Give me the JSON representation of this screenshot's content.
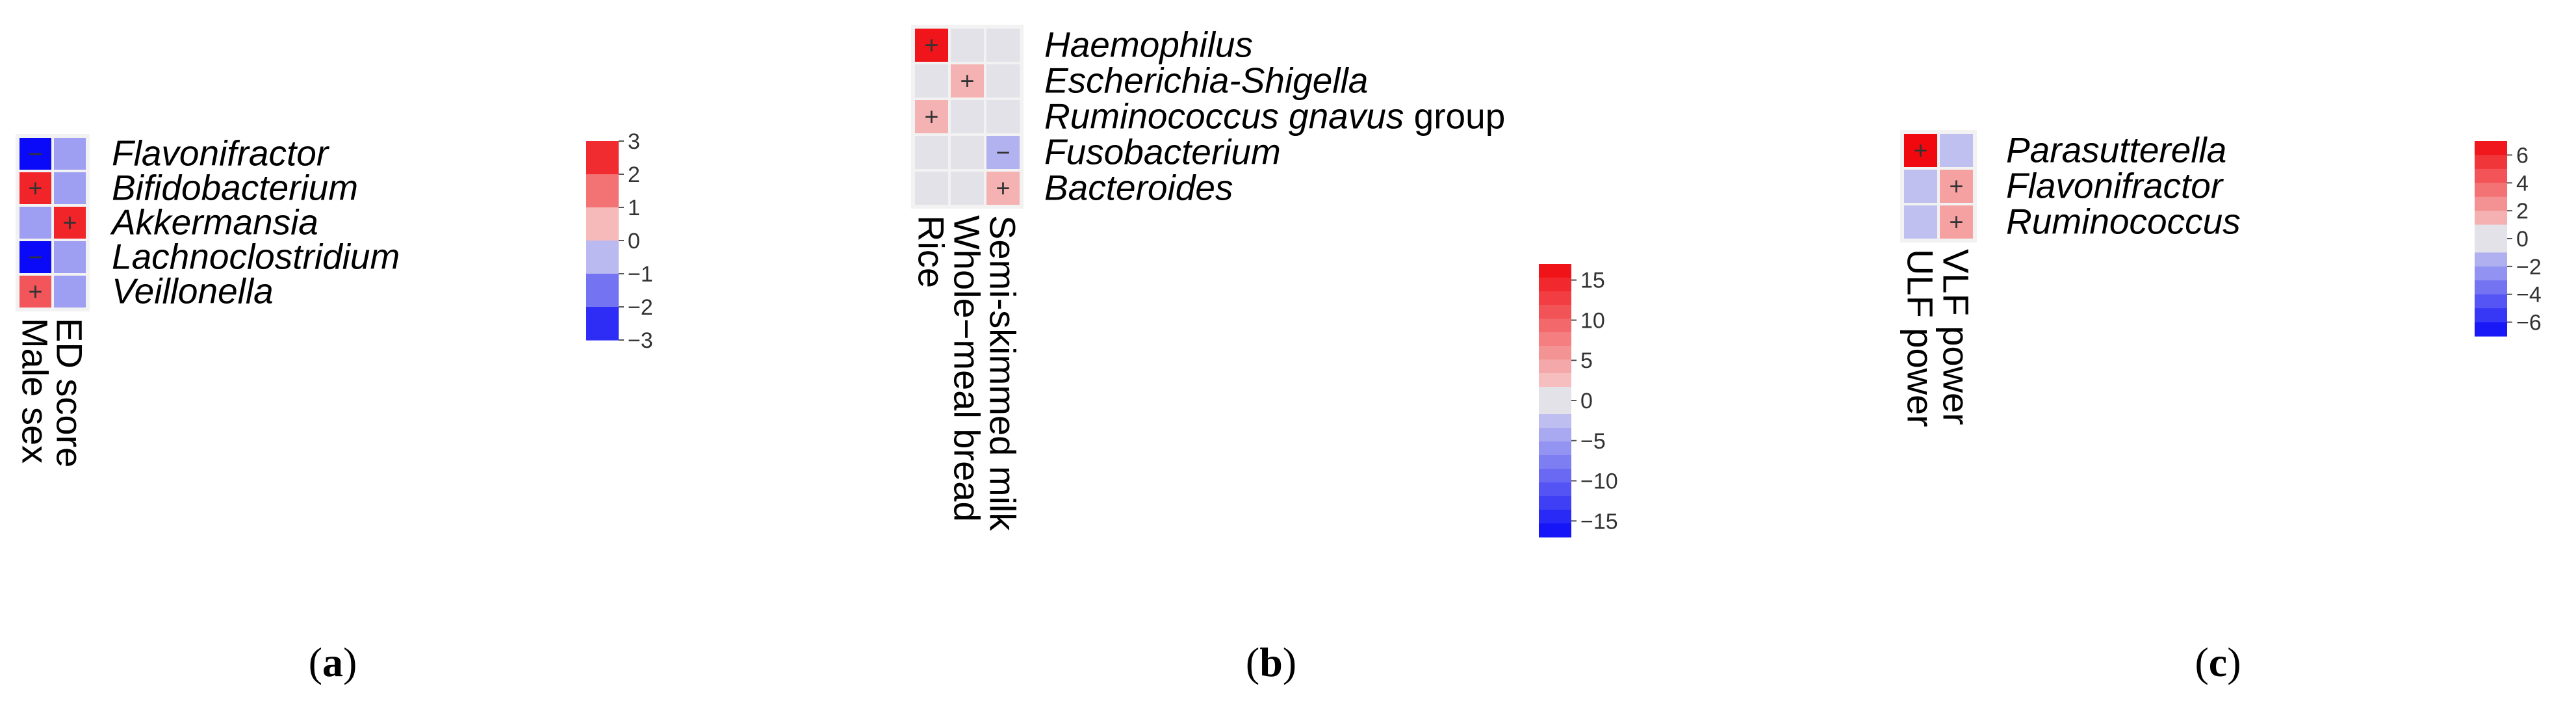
{
  "figure_captions": [
    "(a)",
    "(b)",
    "(c)"
  ],
  "chart_data": [
    {
      "type": "heatmap",
      "panel": "a",
      "rows": [
        "Flavonifractor",
        "Bifidobacterium",
        "Akkermansia",
        "Lachnoclostridium",
        "Veillonella"
      ],
      "columns": [
        "Male sex",
        "ED score"
      ],
      "values": [
        [
          -3,
          -0.9
        ],
        [
          2.6,
          -0.9
        ],
        [
          -0.9,
          2.6
        ],
        [
          -3,
          -0.9
        ],
        [
          1.9,
          -0.9
        ]
      ],
      "signs": [
        [
          "−",
          ""
        ],
        [
          "+",
          ""
        ],
        [
          "",
          "+"
        ],
        [
          "−",
          ""
        ],
        [
          "+",
          ""
        ]
      ],
      "colorbar": {
        "range": [
          -3,
          3
        ],
        "levels": 6,
        "ticks": [
          "3",
          "2",
          "1",
          "0",
          "−1",
          "−2",
          "−3"
        ]
      },
      "caption": "(a)"
    },
    {
      "type": "heatmap",
      "panel": "b",
      "rows": [
        "Haemophilus",
        "Escherichia-Shigella",
        "Ruminococcus gnavus group",
        "Fusobacterium",
        "Bacteroides"
      ],
      "row_suffix": [
        "",
        "",
        " group",
        "",
        ""
      ],
      "row_italic": [
        "Haemophilus",
        "Escherichia-Shigella",
        "Ruminococcus gnavus",
        "Fusobacterium",
        "Bacteroides"
      ],
      "columns": [
        "Rice",
        "Whole−meal bread",
        "Semi-skimmed milk"
      ],
      "values": [
        [
          16,
          0,
          0
        ],
        [
          0,
          3.5,
          0
        ],
        [
          3.5,
          0,
          0
        ],
        [
          0,
          0,
          -3.5
        ],
        [
          0,
          0,
          3.5
        ]
      ],
      "signs": [
        [
          "+",
          "",
          ""
        ],
        [
          "",
          "+",
          ""
        ],
        [
          "+",
          "",
          ""
        ],
        [
          "",
          "",
          "−"
        ],
        [
          "",
          "",
          "+"
        ]
      ],
      "colorbar": {
        "range": [
          -17,
          17
        ],
        "levels": 20,
        "ticks": [
          "15",
          "10",
          "5",
          "0",
          "−5",
          "−10",
          "−15"
        ]
      },
      "caption": "(b)"
    },
    {
      "type": "heatmap",
      "panel": "c",
      "rows": [
        "Parasutterella",
        "Flavonifractor",
        "Ruminococcus"
      ],
      "columns": [
        "ULF power",
        "VLF power"
      ],
      "values": [
        [
          7,
          -1
        ],
        [
          -1,
          2
        ],
        [
          -1,
          2
        ]
      ],
      "signs": [
        [
          "+",
          ""
        ],
        [
          "",
          "+"
        ],
        [
          "",
          "+"
        ]
      ],
      "colorbar": {
        "range": [
          -7,
          7
        ],
        "levels": 14,
        "ticks": [
          "6",
          "4",
          "2",
          "0",
          "−2",
          "−4",
          "−6"
        ]
      },
      "caption": "(c)"
    }
  ]
}
